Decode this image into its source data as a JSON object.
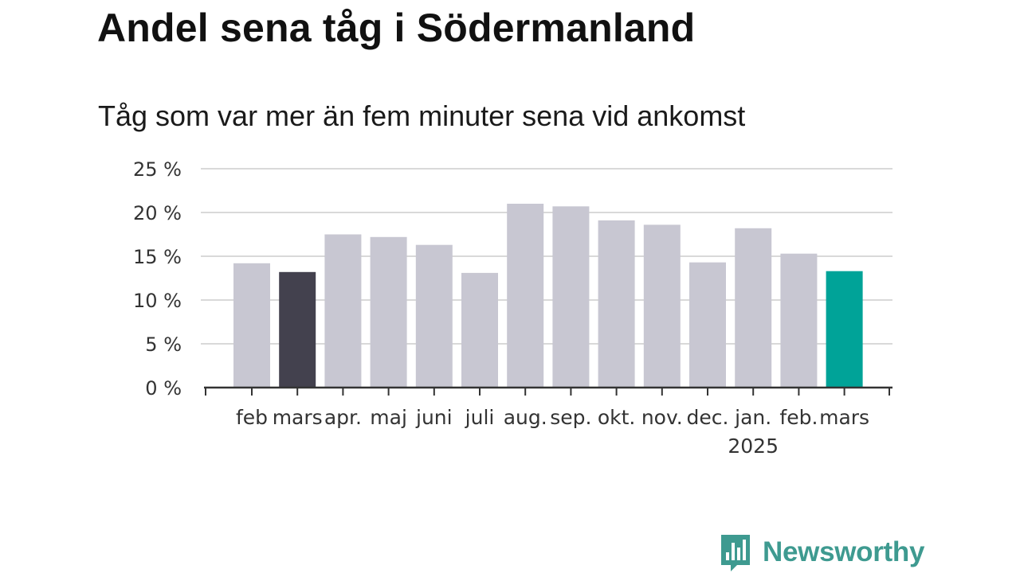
{
  "title": "Andel sena tåg i Södermanland",
  "subtitle": "Tåg som var mer än fem minuter sena vid ankomst",
  "brand": {
    "name": "Newsworthy",
    "icon": "newsworthy-logo-icon",
    "color": "#3e9a90"
  },
  "colors": {
    "default_bar": "#c8c7d2",
    "highlight_previous": "#43414e",
    "highlight_current": "#00a398",
    "grid": "#d9d9d9",
    "axis": "#333333"
  },
  "chart_data": {
    "type": "bar",
    "title": "Andel sena tåg i Södermanland",
    "subtitle": "Tåg som var mer än fem minuter sena vid ankomst",
    "categories": [
      "feb",
      "mars",
      "apr.",
      "maj",
      "juni",
      "juli",
      "aug.",
      "sep.",
      "okt.",
      "nov.",
      "dec.",
      "jan.",
      "feb.",
      "mars"
    ],
    "year_annotation": {
      "label": "2025",
      "category_index": 11
    },
    "values": [
      14.2,
      13.2,
      17.5,
      17.2,
      16.3,
      13.1,
      21.0,
      20.7,
      19.1,
      18.6,
      14.3,
      18.2,
      15.3,
      13.3
    ],
    "highlight": {
      "1": "highlight_previous",
      "13": "highlight_current"
    },
    "ylim": [
      0,
      25
    ],
    "yticks": [
      0,
      5,
      10,
      15,
      20,
      25
    ],
    "ytick_labels": [
      "0 %",
      "5 %",
      "10 %",
      "15 %",
      "20 %",
      "25 %"
    ],
    "grid": true,
    "xlabel": "",
    "ylabel": ""
  }
}
